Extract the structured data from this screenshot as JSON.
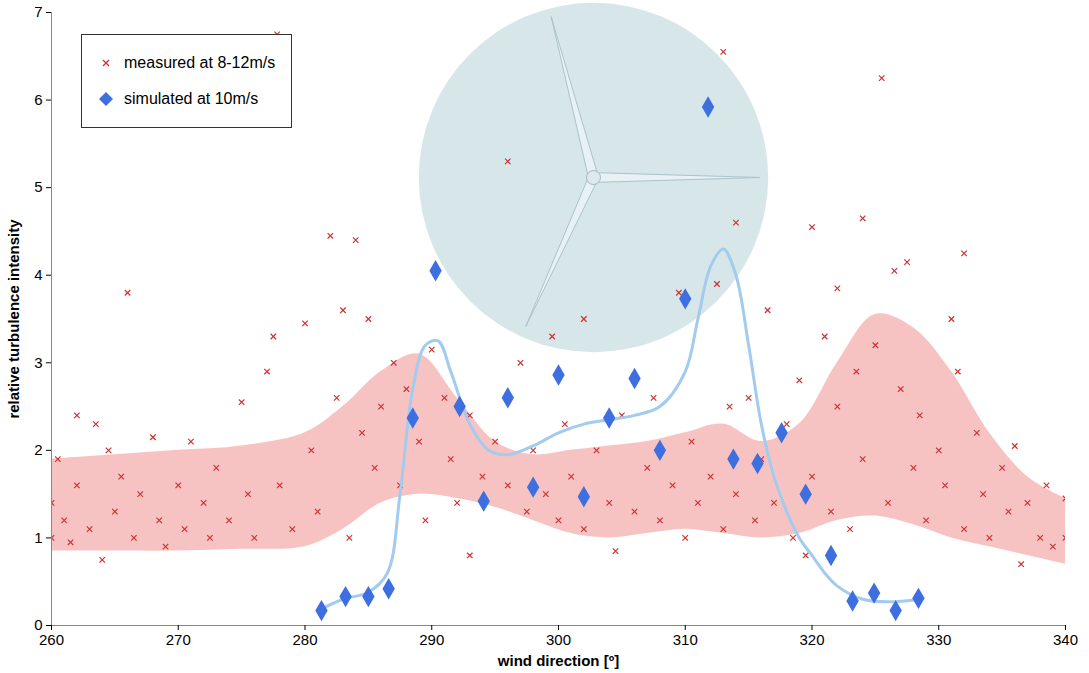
{
  "chart_data": {
    "type": "scatter",
    "x_label": "wind direction [º]",
    "y_label": "relative turbulence intensity",
    "xlim": [
      260,
      340
    ],
    "xticks": [
      260,
      270,
      280,
      290,
      300,
      310,
      320,
      330,
      340
    ],
    "ylim": [
      0,
      7
    ],
    "yticks": [
      0,
      1,
      2,
      3,
      4,
      5,
      6,
      7
    ],
    "grid": false,
    "legend": "top-left",
    "series": [
      {
        "type": "area",
        "color": "#f6b9b7",
        "x": [
          260,
          265,
          270,
          275,
          280,
          283,
          286,
          289,
          292,
          295,
          298,
          301,
          304,
          307,
          310,
          313,
          316,
          319,
          322,
          325,
          328,
          331,
          334,
          337,
          340
        ],
        "lower": [
          0.85,
          0.85,
          0.85,
          0.87,
          0.9,
          1.1,
          1.4,
          1.5,
          1.45,
          1.35,
          1.2,
          1.05,
          1.0,
          1.05,
          1.1,
          1.05,
          1.0,
          1.05,
          1.2,
          1.25,
          1.15,
          1.0,
          0.9,
          0.8,
          0.7
        ],
        "upper": [
          1.9,
          1.95,
          2.0,
          2.05,
          2.2,
          2.5,
          2.9,
          3.1,
          2.6,
          2.1,
          1.95,
          2.0,
          2.05,
          2.1,
          2.2,
          2.3,
          2.1,
          2.3,
          3.0,
          3.55,
          3.4,
          2.9,
          2.2,
          1.7,
          1.45
        ]
      },
      {
        "name": "measured at 8-12m/s",
        "type": "scatter",
        "color": "#cc3333",
        "marker": "x",
        "x": [
          260,
          260,
          260.5,
          261,
          261.5,
          262,
          262,
          263,
          263.5,
          264,
          264.5,
          265,
          265.5,
          266,
          266.5,
          267,
          268,
          268.5,
          269,
          270,
          270.5,
          271,
          272,
          272.5,
          273,
          274,
          275,
          275.5,
          276,
          277,
          277.5,
          277.8,
          278,
          279,
          280,
          280.5,
          281,
          282,
          282.5,
          283,
          283.5,
          284,
          284.5,
          285,
          285.5,
          286,
          287,
          287.5,
          288,
          289,
          289.5,
          290,
          291,
          291.5,
          292,
          293,
          293,
          294,
          295,
          296,
          296,
          297,
          297.5,
          298,
          299,
          299.5,
          300,
          300.5,
          301,
          302,
          302,
          303,
          304,
          304.5,
          305,
          306,
          307,
          307.5,
          308,
          309,
          309.5,
          310,
          310.5,
          311,
          312,
          312.5,
          313,
          313,
          313.5,
          314,
          314,
          315,
          315.5,
          316,
          316.5,
          317,
          318,
          318.5,
          319,
          319.5,
          320,
          320,
          321,
          321.5,
          322,
          322,
          323,
          323.5,
          324,
          324,
          325,
          325.5,
          326,
          326.5,
          327,
          327.5,
          328,
          328.5,
          329,
          330,
          330.5,
          331,
          331.5,
          332,
          332,
          333,
          333.5,
          334,
          335,
          335.5,
          336,
          336.5,
          337,
          338,
          338.5,
          339,
          340,
          340
        ],
        "values": [
          1.0,
          1.4,
          1.9,
          1.2,
          0.95,
          2.4,
          1.6,
          1.1,
          2.3,
          0.75,
          2.0,
          1.3,
          1.7,
          3.8,
          1.0,
          1.5,
          2.15,
          1.2,
          0.9,
          1.6,
          1.1,
          2.1,
          1.4,
          1.0,
          1.8,
          1.2,
          2.55,
          1.5,
          1.0,
          2.9,
          3.3,
          6.75,
          1.6,
          1.1,
          3.45,
          2.0,
          1.3,
          4.45,
          2.6,
          3.6,
          1.0,
          4.4,
          2.2,
          3.5,
          1.8,
          2.5,
          3.0,
          1.6,
          2.7,
          2.1,
          1.2,
          3.15,
          2.6,
          1.9,
          1.4,
          2.4,
          0.8,
          1.7,
          2.1,
          5.3,
          1.6,
          3.0,
          1.3,
          2.0,
          1.5,
          3.3,
          1.2,
          2.3,
          1.7,
          1.1,
          3.5,
          2.0,
          1.4,
          0.85,
          2.4,
          1.3,
          1.8,
          2.6,
          1.2,
          1.6,
          3.8,
          1.0,
          2.1,
          1.4,
          1.7,
          3.9,
          6.55,
          1.1,
          2.5,
          4.6,
          1.5,
          2.6,
          1.2,
          1.9,
          3.6,
          1.4,
          2.3,
          1.0,
          2.8,
          0.8,
          4.55,
          1.7,
          3.3,
          1.3,
          3.85,
          2.5,
          1.1,
          2.9,
          4.65,
          1.9,
          3.2,
          6.25,
          1.4,
          4.05,
          2.7,
          4.15,
          1.8,
          2.4,
          1.2,
          2.0,
          1.6,
          3.5,
          2.9,
          4.25,
          1.1,
          2.2,
          1.5,
          1.0,
          1.8,
          1.3,
          2.05,
          0.7,
          1.4,
          1.0,
          1.6,
          0.9,
          1.45,
          1.0
        ]
      },
      {
        "type": "line",
        "color": "#a3cbee",
        "x": [
          281,
          283,
          285,
          286.5,
          287.5,
          288.5,
          289.5,
          290.5,
          291.5,
          293,
          294.5,
          296,
          298,
          300,
          302,
          304,
          306,
          308,
          310,
          311,
          312,
          313,
          314,
          315,
          316,
          317,
          318,
          319,
          320,
          321,
          322,
          324,
          326,
          328.5
        ],
        "values": [
          0.17,
          0.3,
          0.38,
          0.6,
          1.5,
          2.7,
          3.2,
          3.25,
          2.9,
          2.3,
          2.0,
          1.95,
          2.05,
          2.2,
          2.3,
          2.35,
          2.4,
          2.5,
          2.9,
          3.5,
          4.1,
          4.3,
          4.0,
          3.2,
          2.3,
          1.7,
          1.3,
          1.0,
          0.8,
          0.6,
          0.45,
          0.3,
          0.27,
          0.3
        ]
      },
      {
        "name": "simulated at 10m/s",
        "type": "scatter",
        "color": "#3d6fe0",
        "marker": "diamond",
        "x": [
          281.3,
          283.2,
          285,
          286.6,
          288.5,
          290.3,
          292.2,
          294.1,
          296,
          298,
          300,
          302,
          304,
          306,
          308,
          310,
          311.8,
          313.8,
          315.7,
          317.6,
          319.5,
          321.5,
          323.2,
          324.9,
          326.6,
          328.4
        ],
        "values": [
          0.17,
          0.33,
          0.33,
          0.42,
          2.37,
          4.05,
          2.5,
          1.42,
          2.6,
          1.58,
          2.86,
          1.47,
          2.37,
          2.82,
          2.0,
          3.73,
          5.92,
          1.9,
          1.85,
          2.2,
          1.5,
          0.8,
          0.28,
          0.37,
          0.17,
          0.31
        ]
      }
    ]
  }
}
